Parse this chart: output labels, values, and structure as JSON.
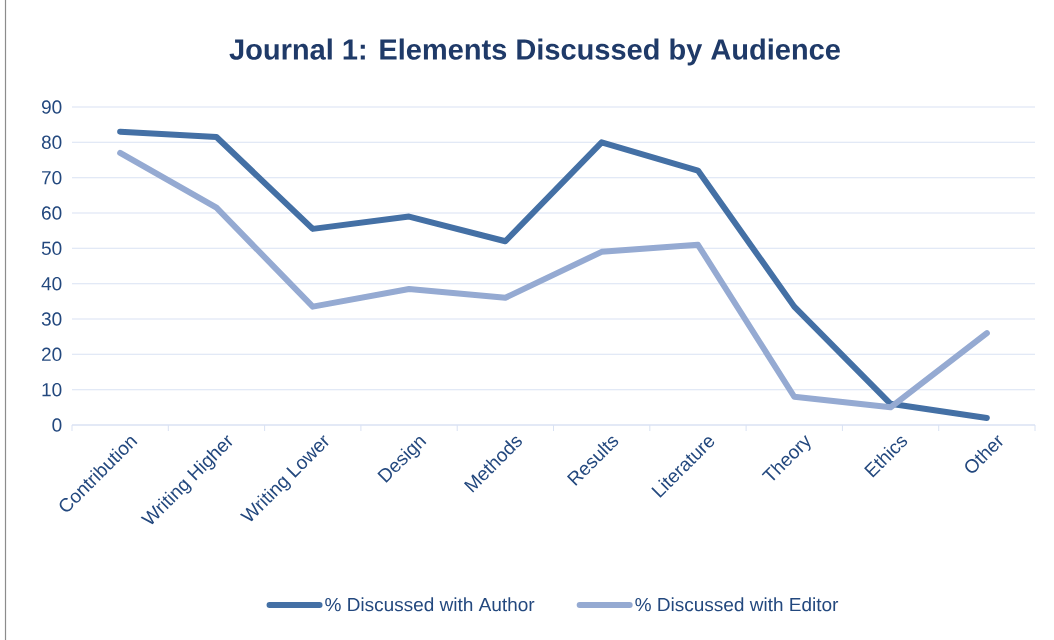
{
  "chart_data": {
    "type": "line",
    "title": "Journal 1: Elements Discussed by Audience",
    "categories": [
      "Contribution",
      "Writing Higher",
      "Writing Lower",
      "Design",
      "Methods",
      "Results",
      "Literature",
      "Theory",
      "Ethics",
      "Other"
    ],
    "series": [
      {
        "name": "% Discussed with Author",
        "color": "#4470a5",
        "values": [
          83,
          81.5,
          55.5,
          59,
          52,
          80,
          72,
          33.5,
          6,
          2
        ]
      },
      {
        "name": "% Discussed with Editor",
        "color": "#95aad2",
        "values": [
          77,
          61.5,
          33.5,
          38.5,
          36,
          49,
          51,
          8,
          5,
          26
        ]
      }
    ],
    "ylim": [
      0,
      90
    ],
    "yticks": [
      0,
      10,
      20,
      30,
      40,
      50,
      60,
      70,
      80,
      90
    ],
    "grid": "y",
    "legend": "bottom",
    "marker": "none",
    "line_style": "solid"
  }
}
